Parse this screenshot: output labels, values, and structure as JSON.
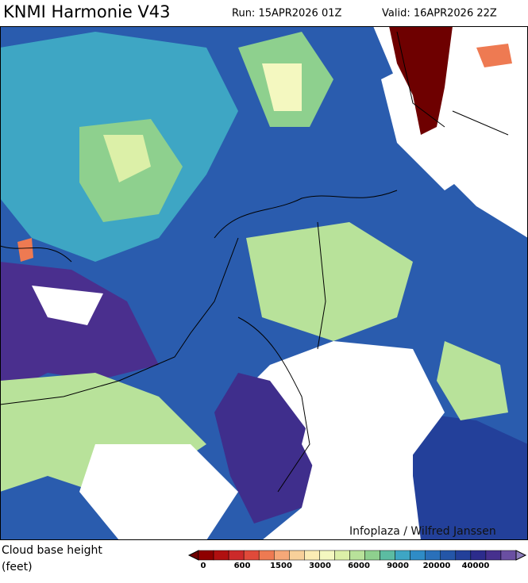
{
  "header": {
    "title": "KNMI Harmonie V43",
    "run": "Run: 15APR2026 01Z",
    "valid": "Valid: 16APR2026 22Z"
  },
  "map": {
    "credit": "Infoplaza / Wilfred Janssen"
  },
  "legend": {
    "title_line1": "Cloud base height",
    "title_line2": "(feet)",
    "labels": [
      "0",
      "600",
      "1500",
      "3000",
      "6000",
      "9000",
      "20000",
      "40000"
    ],
    "colors": [
      "#6e0000",
      "#8e0000",
      "#b01010",
      "#cc2a2a",
      "#e04a3a",
      "#ee7a52",
      "#f6a878",
      "#f8d09a",
      "#fbecb4",
      "#f4f8c0",
      "#dcf0a8",
      "#b8e29a",
      "#8ed08e",
      "#5cbca2",
      "#3ea6c4",
      "#2f8cc6",
      "#2a70ba",
      "#2456a8",
      "#23409a",
      "#2c2c8c",
      "#46308e",
      "#6a4fa2",
      "#8c7cbc"
    ]
  }
}
